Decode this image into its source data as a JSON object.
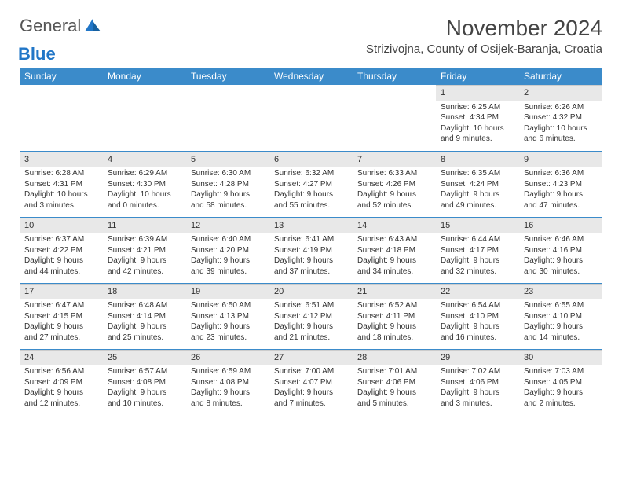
{
  "logo": {
    "general": "General",
    "blue": "Blue"
  },
  "title": "November 2024",
  "location": "Strizivojna, County of Osijek-Baranja, Croatia",
  "weekdays": [
    "Sunday",
    "Monday",
    "Tuesday",
    "Wednesday",
    "Thursday",
    "Friday",
    "Saturday"
  ],
  "colors": {
    "header_bg": "#3b8bca",
    "header_text": "#ffffff",
    "daynum_bg": "#e8e8e8",
    "border": "#3b8bca",
    "text": "#333333"
  },
  "weeks": [
    [
      {
        "n": "",
        "sr": "",
        "ss": "",
        "dl": ""
      },
      {
        "n": "",
        "sr": "",
        "ss": "",
        "dl": ""
      },
      {
        "n": "",
        "sr": "",
        "ss": "",
        "dl": ""
      },
      {
        "n": "",
        "sr": "",
        "ss": "",
        "dl": ""
      },
      {
        "n": "",
        "sr": "",
        "ss": "",
        "dl": ""
      },
      {
        "n": "1",
        "sr": "Sunrise: 6:25 AM",
        "ss": "Sunset: 4:34 PM",
        "dl": "Daylight: 10 hours and 9 minutes."
      },
      {
        "n": "2",
        "sr": "Sunrise: 6:26 AM",
        "ss": "Sunset: 4:32 PM",
        "dl": "Daylight: 10 hours and 6 minutes."
      }
    ],
    [
      {
        "n": "3",
        "sr": "Sunrise: 6:28 AM",
        "ss": "Sunset: 4:31 PM",
        "dl": "Daylight: 10 hours and 3 minutes."
      },
      {
        "n": "4",
        "sr": "Sunrise: 6:29 AM",
        "ss": "Sunset: 4:30 PM",
        "dl": "Daylight: 10 hours and 0 minutes."
      },
      {
        "n": "5",
        "sr": "Sunrise: 6:30 AM",
        "ss": "Sunset: 4:28 PM",
        "dl": "Daylight: 9 hours and 58 minutes."
      },
      {
        "n": "6",
        "sr": "Sunrise: 6:32 AM",
        "ss": "Sunset: 4:27 PM",
        "dl": "Daylight: 9 hours and 55 minutes."
      },
      {
        "n": "7",
        "sr": "Sunrise: 6:33 AM",
        "ss": "Sunset: 4:26 PM",
        "dl": "Daylight: 9 hours and 52 minutes."
      },
      {
        "n": "8",
        "sr": "Sunrise: 6:35 AM",
        "ss": "Sunset: 4:24 PM",
        "dl": "Daylight: 9 hours and 49 minutes."
      },
      {
        "n": "9",
        "sr": "Sunrise: 6:36 AM",
        "ss": "Sunset: 4:23 PM",
        "dl": "Daylight: 9 hours and 47 minutes."
      }
    ],
    [
      {
        "n": "10",
        "sr": "Sunrise: 6:37 AM",
        "ss": "Sunset: 4:22 PM",
        "dl": "Daylight: 9 hours and 44 minutes."
      },
      {
        "n": "11",
        "sr": "Sunrise: 6:39 AM",
        "ss": "Sunset: 4:21 PM",
        "dl": "Daylight: 9 hours and 42 minutes."
      },
      {
        "n": "12",
        "sr": "Sunrise: 6:40 AM",
        "ss": "Sunset: 4:20 PM",
        "dl": "Daylight: 9 hours and 39 minutes."
      },
      {
        "n": "13",
        "sr": "Sunrise: 6:41 AM",
        "ss": "Sunset: 4:19 PM",
        "dl": "Daylight: 9 hours and 37 minutes."
      },
      {
        "n": "14",
        "sr": "Sunrise: 6:43 AM",
        "ss": "Sunset: 4:18 PM",
        "dl": "Daylight: 9 hours and 34 minutes."
      },
      {
        "n": "15",
        "sr": "Sunrise: 6:44 AM",
        "ss": "Sunset: 4:17 PM",
        "dl": "Daylight: 9 hours and 32 minutes."
      },
      {
        "n": "16",
        "sr": "Sunrise: 6:46 AM",
        "ss": "Sunset: 4:16 PM",
        "dl": "Daylight: 9 hours and 30 minutes."
      }
    ],
    [
      {
        "n": "17",
        "sr": "Sunrise: 6:47 AM",
        "ss": "Sunset: 4:15 PM",
        "dl": "Daylight: 9 hours and 27 minutes."
      },
      {
        "n": "18",
        "sr": "Sunrise: 6:48 AM",
        "ss": "Sunset: 4:14 PM",
        "dl": "Daylight: 9 hours and 25 minutes."
      },
      {
        "n": "19",
        "sr": "Sunrise: 6:50 AM",
        "ss": "Sunset: 4:13 PM",
        "dl": "Daylight: 9 hours and 23 minutes."
      },
      {
        "n": "20",
        "sr": "Sunrise: 6:51 AM",
        "ss": "Sunset: 4:12 PM",
        "dl": "Daylight: 9 hours and 21 minutes."
      },
      {
        "n": "21",
        "sr": "Sunrise: 6:52 AM",
        "ss": "Sunset: 4:11 PM",
        "dl": "Daylight: 9 hours and 18 minutes."
      },
      {
        "n": "22",
        "sr": "Sunrise: 6:54 AM",
        "ss": "Sunset: 4:10 PM",
        "dl": "Daylight: 9 hours and 16 minutes."
      },
      {
        "n": "23",
        "sr": "Sunrise: 6:55 AM",
        "ss": "Sunset: 4:10 PM",
        "dl": "Daylight: 9 hours and 14 minutes."
      }
    ],
    [
      {
        "n": "24",
        "sr": "Sunrise: 6:56 AM",
        "ss": "Sunset: 4:09 PM",
        "dl": "Daylight: 9 hours and 12 minutes."
      },
      {
        "n": "25",
        "sr": "Sunrise: 6:57 AM",
        "ss": "Sunset: 4:08 PM",
        "dl": "Daylight: 9 hours and 10 minutes."
      },
      {
        "n": "26",
        "sr": "Sunrise: 6:59 AM",
        "ss": "Sunset: 4:08 PM",
        "dl": "Daylight: 9 hours and 8 minutes."
      },
      {
        "n": "27",
        "sr": "Sunrise: 7:00 AM",
        "ss": "Sunset: 4:07 PM",
        "dl": "Daylight: 9 hours and 7 minutes."
      },
      {
        "n": "28",
        "sr": "Sunrise: 7:01 AM",
        "ss": "Sunset: 4:06 PM",
        "dl": "Daylight: 9 hours and 5 minutes."
      },
      {
        "n": "29",
        "sr": "Sunrise: 7:02 AM",
        "ss": "Sunset: 4:06 PM",
        "dl": "Daylight: 9 hours and 3 minutes."
      },
      {
        "n": "30",
        "sr": "Sunrise: 7:03 AM",
        "ss": "Sunset: 4:05 PM",
        "dl": "Daylight: 9 hours and 2 minutes."
      }
    ]
  ]
}
